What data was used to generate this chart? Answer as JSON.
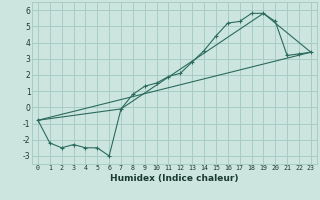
{
  "xlabel": "Humidex (Indice chaleur)",
  "ylabel": "",
  "bg_color": "#cde5df",
  "grid_color": "#a8ccC4",
  "line_color": "#2a6b5e",
  "xlim": [
    -0.5,
    23.5
  ],
  "ylim": [
    -3.5,
    6.5
  ],
  "xticks": [
    0,
    1,
    2,
    3,
    4,
    5,
    6,
    7,
    8,
    9,
    10,
    11,
    12,
    13,
    14,
    15,
    16,
    17,
    18,
    19,
    20,
    21,
    22,
    23
  ],
  "yticks": [
    -3,
    -2,
    -1,
    0,
    1,
    2,
    3,
    4,
    5,
    6
  ],
  "line1_x": [
    0,
    1,
    2,
    3,
    4,
    5,
    6,
    7,
    8,
    9,
    10,
    11,
    12,
    13,
    14,
    15,
    16,
    17,
    18,
    19,
    20,
    21,
    22,
    23
  ],
  "line1_y": [
    -0.8,
    -2.2,
    -2.5,
    -2.3,
    -2.5,
    -2.5,
    -3.0,
    -0.1,
    0.8,
    1.3,
    1.5,
    1.9,
    2.1,
    2.8,
    3.5,
    4.4,
    5.2,
    5.3,
    5.8,
    5.8,
    5.3,
    3.2,
    3.3,
    3.4
  ],
  "line2_x": [
    0,
    7,
    19,
    23
  ],
  "line2_y": [
    -0.8,
    -0.1,
    5.8,
    3.4
  ],
  "line3_x": [
    0,
    23
  ],
  "line3_y": [
    -0.8,
    3.4
  ],
  "xlabel_fontsize": 6.5,
  "tick_fontsize": 4.8,
  "ytick_fontsize": 5.5
}
